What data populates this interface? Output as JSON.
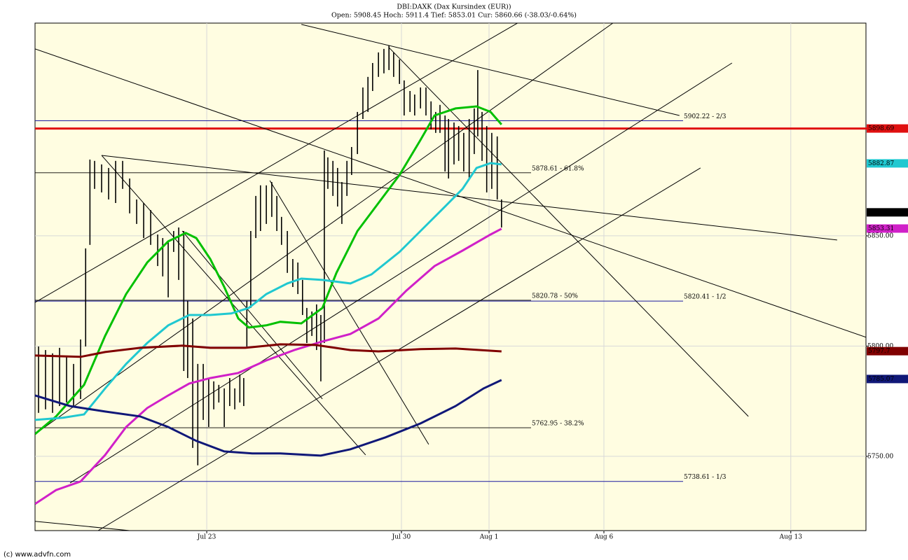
{
  "chart_data": {
    "type": "hilo",
    "title": "DBI:DAXK (Dax Kursindex (EUR))",
    "subtitle": "Open: 5908.45 Hoch: 5911.4 Tief: 5853.01 Cur: 5860.66 (-38.03/-0.64%)",
    "credit": "(c) www.advfn.com",
    "xlim": [
      -4.41,
      16.93
    ],
    "ylim": [
      5716.3,
      5946.5
    ],
    "xticks": [
      {
        "value": 0,
        "label": "Jul 23"
      },
      {
        "value": 5,
        "label": "Jul 30"
      },
      {
        "value": 7.25,
        "label": "Aug 1"
      },
      {
        "value": 10.2,
        "label": "Aug 6"
      },
      {
        "value": 15,
        "label": "Aug 13"
      }
    ],
    "yticks": [
      {
        "value": 5750,
        "label": "5750.00"
      },
      {
        "value": 5800,
        "label": "5800.00"
      },
      {
        "value": 5850,
        "label": "5850.00"
      }
    ],
    "grid": true,
    "background": "#fffde1",
    "color": "#000000",
    "x": [
      -4.32,
      -4.14,
      -3.96,
      -3.78,
      -3.6,
      -3.42,
      -3.24,
      -3.11,
      -3.0,
      -2.88,
      -2.7,
      -2.52,
      -2.34,
      -2.16,
      -1.98,
      -1.8,
      -1.62,
      -1.44,
      -1.26,
      -1.13,
      -0.99,
      -0.85,
      -0.72,
      -0.59,
      -0.49,
      -0.36,
      -0.23,
      -0.09,
      0.05,
      0.18,
      0.31,
      0.45,
      0.59,
      0.72,
      0.85,
      0.95,
      1.03,
      1.13,
      1.26,
      1.38,
      1.53,
      1.67,
      1.8,
      1.92,
      2.07,
      2.21,
      2.34,
      2.46,
      2.57,
      2.7,
      2.82,
      2.93,
      3.02,
      3.11,
      3.24,
      3.36,
      3.47,
      3.6,
      3.72,
      3.87,
      4.01,
      4.14,
      4.26,
      4.41,
      4.55,
      4.68,
      4.8,
      4.95,
      5.07,
      5.22,
      5.34,
      5.49,
      5.63,
      5.76,
      5.88,
      5.99,
      6.12,
      6.21,
      6.35,
      6.47,
      6.6,
      6.74,
      6.87,
      6.96,
      7.07,
      7.19,
      7.32,
      7.46,
      7.57
    ],
    "high": [
      5799.8,
      5798.2,
      5796.7,
      5799.2,
      5795.1,
      5791.9,
      5803.0,
      5844.3,
      5884.6,
      5884.0,
      5882.4,
      5880.8,
      5884.0,
      5884.0,
      5876.0,
      5866.5,
      5864.9,
      5861.7,
      5850.6,
      5849.0,
      5847.5,
      5852.2,
      5853.8,
      5852.2,
      5820.5,
      5812.5,
      5791.9,
      5791.9,
      5785.5,
      5784.0,
      5782.4,
      5780.8,
      5785.5,
      5780.8,
      5787.1,
      5785.5,
      5820.5,
      5852.2,
      5868.1,
      5872.9,
      5872.9,
      5874.4,
      5868.1,
      5858.6,
      5852.2,
      5839.5,
      5837.9,
      5830.0,
      5817.3,
      5815.7,
      5818.9,
      5814.1,
      5888.7,
      5885.6,
      5884.0,
      5880.8,
      5874.4,
      5884.0,
      5890.3,
      5906.2,
      5917.3,
      5922.1,
      5928.4,
      5933.2,
      5934.8,
      5936.4,
      5933.2,
      5930.0,
      5920.5,
      5915.7,
      5914.1,
      5917.3,
      5917.3,
      5911.0,
      5906.2,
      5909.4,
      5904.6,
      5903.0,
      5901.4,
      5899.8,
      5896.7,
      5903.0,
      5907.8,
      5925.2,
      5906.2,
      5899.8,
      5896.7,
      5895.1,
      5866.5
    ],
    "low": [
      5769.7,
      5771.3,
      5769.7,
      5772.8,
      5774.4,
      5772.8,
      5776.0,
      5799.8,
      5845.9,
      5871.3,
      5869.7,
      5866.5,
      5864.9,
      5871.3,
      5860.2,
      5855.4,
      5849.0,
      5845.9,
      5836.3,
      5831.6,
      5822.1,
      5842.7,
      5830.0,
      5788.7,
      5785.5,
      5753.8,
      5745.9,
      5766.5,
      5763.3,
      5771.3,
      5774.4,
      5763.3,
      5772.8,
      5771.3,
      5774.4,
      5772.8,
      5799.8,
      5817.3,
      5849.0,
      5852.2,
      5855.4,
      5858.6,
      5852.2,
      5845.9,
      5833.2,
      5826.8,
      5823.6,
      5814.1,
      5801.4,
      5804.6,
      5798.2,
      5784.0,
      5801.4,
      5871.3,
      5868.1,
      5863.3,
      5855.4,
      5868.1,
      5877.6,
      5887.1,
      5903.0,
      5906.2,
      5915.7,
      5922.1,
      5923.7,
      5925.2,
      5922.1,
      5918.9,
      5904.6,
      5906.2,
      5904.6,
      5907.8,
      5904.6,
      5898.3,
      5896.7,
      5896.7,
      5879.2,
      5876.0,
      5882.4,
      5884.0,
      5879.2,
      5876.0,
      5887.1,
      5895.1,
      5884.0,
      5869.7,
      5871.3,
      5866.5,
      5853.8
    ],
    "moving_averages": [
      {
        "color": "#00c000",
        "x": [
          -4.41,
          -3.87,
          -3.15,
          -2.61,
          -2.07,
          -1.53,
          -0.99,
          -0.54,
          -0.27,
          0.09,
          0.45,
          0.81,
          1.08,
          1.53,
          1.89,
          2.43,
          2.97,
          3.33,
          3.87,
          4.41,
          4.95,
          5.49,
          5.85,
          6.39,
          6.93,
          7.29,
          7.57
        ],
        "values": [
          5760.1,
          5768.1,
          5782.4,
          5804.6,
          5823.6,
          5837.9,
          5847.5,
          5851.3,
          5849.0,
          5839.5,
          5826.8,
          5812.5,
          5808.4,
          5809.4,
          5811.0,
          5810.3,
          5817.3,
          5833.2,
          5852.2,
          5864.9,
          5877.6,
          5893.5,
          5904.6,
          5907.8,
          5908.7,
          5906.2,
          5900.5
        ]
      },
      {
        "color": "#20c8d0",
        "x": [
          -4.41,
          -3.69,
          -3.15,
          -2.61,
          -2.07,
          -1.53,
          -0.99,
          -0.45,
          0.09,
          0.63,
          1.08,
          1.53,
          2.07,
          2.43,
          2.97,
          3.69,
          4.23,
          4.95,
          5.49,
          6.03,
          6.57,
          6.93,
          7.29,
          7.57
        ],
        "values": [
          5766.5,
          5767.5,
          5769.0,
          5780.8,
          5791.9,
          5801.4,
          5809.4,
          5814.1,
          5814.1,
          5814.8,
          5817.3,
          5823.6,
          5828.4,
          5830.6,
          5830.0,
          5828.4,
          5832.5,
          5842.7,
          5852.2,
          5861.7,
          5871.3,
          5880.8,
          5883.0,
          5882.4
        ]
      },
      {
        "color": "#d020c8",
        "x": [
          -4.41,
          -3.87,
          -3.24,
          -2.61,
          -2.07,
          -1.53,
          -0.99,
          -0.45,
          0.09,
          0.81,
          1.53,
          2.25,
          2.97,
          3.69,
          4.41,
          5.13,
          5.85,
          6.57,
          7.29,
          7.57
        ],
        "values": [
          5728.4,
          5734.7,
          5738.6,
          5750.6,
          5763.3,
          5771.9,
          5777.6,
          5783.0,
          5785.5,
          5787.8,
          5793.5,
          5798.2,
          5802.1,
          5805.5,
          5812.5,
          5825.2,
          5836.3,
          5843.3,
          5850.6,
          5853.2
        ]
      },
      {
        "color": "#800000",
        "x": [
          -4.41,
          -3.24,
          -2.61,
          -1.71,
          -0.63,
          0.09,
          0.99,
          1.89,
          2.79,
          3.69,
          4.41,
          5.49,
          6.39,
          7.57
        ],
        "values": [
          5795.7,
          5795.1,
          5797.3,
          5799.2,
          5800.2,
          5799.2,
          5799.2,
          5800.8,
          5800.5,
          5798.2,
          5797.6,
          5798.6,
          5798.9,
          5797.6
        ]
      },
      {
        "color": "#101878",
        "x": [
          -4.41,
          -3.51,
          -2.61,
          -1.71,
          -0.99,
          -0.27,
          0.45,
          1.17,
          1.89,
          2.93,
          3.69,
          4.59,
          5.49,
          6.39,
          7.11,
          7.57
        ],
        "values": [
          5777.6,
          5772.8,
          5770.3,
          5768.1,
          5763.3,
          5757.0,
          5752.2,
          5751.3,
          5751.3,
          5750.3,
          5753.2,
          5758.6,
          5764.9,
          5772.8,
          5780.8,
          5784.6
        ]
      }
    ],
    "trend_lines": [
      {
        "x": [
          -2.7,
          16.19
        ],
        "y": [
          5886.5,
          5848.1
        ]
      },
      {
        "x": [
          -4.41,
          16.93
        ],
        "y": [
          5934.8,
          5804.0
        ]
      },
      {
        "x": [
          2.43,
          12.14
        ],
        "y": [
          5945.9,
          5904.6
        ]
      },
      {
        "x": [
          4.68,
          13.91
        ],
        "y": [
          5935.4,
          5768.1
        ]
      },
      {
        "x": [
          -2.7,
          4.08
        ],
        "y": [
          5886.5,
          5750.6
        ]
      },
      {
        "x": [
          1.62,
          5.7
        ],
        "y": [
          5875.1,
          5755.4
        ]
      },
      {
        "x": [
          -4.41,
          8.01
        ],
        "y": [
          5819.8,
          5946.8
        ]
      },
      {
        "x": [
          -4.41,
          10.43
        ],
        "y": [
          5760.1,
          5946.5
        ]
      },
      {
        "x": [
          -3.51,
          13.49
        ],
        "y": [
          5737.9,
          5928.4
        ]
      },
      {
        "x": [
          -2.79,
          12.68
        ],
        "y": [
          5716.3,
          5880.8
        ]
      },
      {
        "x": [
          -4.41,
          -1.98
        ],
        "y": [
          5720.5,
          5716.3
        ]
      },
      {
        "x": [
          -0.63,
          2.97
        ],
        "y": [
          5852.2,
          5776.0
        ]
      }
    ],
    "levels": [
      {
        "value": 5902.22,
        "label": "5902.22 - 2/3",
        "color": "#1a1aa0"
      },
      {
        "value": 5878.61,
        "label": "5878.61 - 61.8%",
        "color": "#000000"
      },
      {
        "value": 5820.78,
        "label": "5820.78 - 50%",
        "color": "#000000"
      },
      {
        "value": 5820.41,
        "label": "5820.41 - 1/2",
        "color": "#1a1aa0"
      },
      {
        "value": 5762.95,
        "label": "5762.95 - 38.2%",
        "color": "#000000"
      },
      {
        "value": 5738.61,
        "label": "5738.61 - 1/3",
        "color": "#1a1aa0"
      }
    ],
    "resistance": {
      "value": 5898.69,
      "color": "#e01010"
    },
    "price_tags": [
      {
        "value": 5898.69,
        "color": "#e01010"
      },
      {
        "value": 5882.87,
        "color": "#20c8d0"
      },
      {
        "value": 5860.66,
        "color": "#000000"
      },
      {
        "value": 5853.31,
        "color": "#d020c8"
      },
      {
        "value": 5797.7,
        "color": "#800000"
      },
      {
        "value": 5785.07,
        "color": "#101878"
      }
    ]
  }
}
